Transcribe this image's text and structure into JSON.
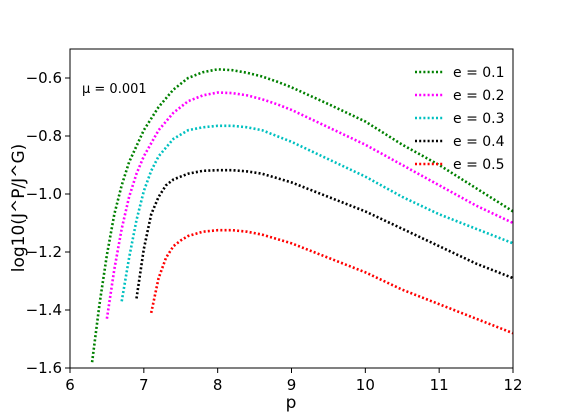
{
  "chart_data": {
    "type": "line",
    "xlabel": "p",
    "ylabel": "log10(J^P/J^G)",
    "xlim": [
      6,
      12
    ],
    "ylim": [
      -1.6,
      -0.5
    ],
    "xticks": [
      "6",
      "7",
      "8",
      "9",
      "10",
      "11",
      "12"
    ],
    "yticks": [
      "-0.6",
      "-0.8",
      "-1.0",
      "-1.2",
      "-1.4",
      "-1.6"
    ],
    "annotation": "μ = 0.001",
    "legend_position": "top-right",
    "grid": false,
    "series": [
      {
        "name": "e = 0.1",
        "color": "#008000",
        "x": [
          6.3,
          6.4,
          6.5,
          6.6,
          6.7,
          6.8,
          7.0,
          7.2,
          7.4,
          7.6,
          7.8,
          8.0,
          8.2,
          8.4,
          8.6,
          8.8,
          9.0,
          9.5,
          10.0,
          10.5,
          11.0,
          11.5,
          12.0
        ],
        "y": [
          -1.58,
          -1.38,
          -1.21,
          -1.07,
          -0.97,
          -0.89,
          -0.78,
          -0.7,
          -0.64,
          -0.6,
          -0.58,
          -0.57,
          -0.573,
          -0.582,
          -0.595,
          -0.612,
          -0.632,
          -0.69,
          -0.75,
          -0.83,
          -0.9,
          -0.98,
          -1.06
        ]
      },
      {
        "name": "e = 0.2",
        "color": "#ff00ff",
        "x": [
          6.5,
          6.6,
          6.7,
          6.8,
          6.9,
          7.0,
          7.2,
          7.4,
          7.6,
          7.8,
          8.0,
          8.2,
          8.4,
          8.6,
          8.8,
          9.0,
          9.5,
          10.0,
          10.5,
          11.0,
          11.5,
          12.0
        ],
        "y": [
          -1.43,
          -1.26,
          -1.12,
          -1.01,
          -0.93,
          -0.87,
          -0.78,
          -0.72,
          -0.68,
          -0.66,
          -0.65,
          -0.652,
          -0.66,
          -0.673,
          -0.69,
          -0.71,
          -0.77,
          -0.83,
          -0.9,
          -0.97,
          -1.04,
          -1.1
        ]
      },
      {
        "name": "e = 0.3",
        "color": "#00c0c0",
        "x": [
          6.7,
          6.8,
          6.9,
          7.0,
          7.1,
          7.2,
          7.4,
          7.6,
          7.8,
          8.0,
          8.2,
          8.4,
          8.6,
          8.8,
          9.0,
          9.5,
          10.0,
          10.5,
          11.0,
          11.5,
          12.0
        ],
        "y": [
          -1.37,
          -1.22,
          -1.09,
          -0.99,
          -0.92,
          -0.87,
          -0.81,
          -0.78,
          -0.77,
          -0.765,
          -0.765,
          -0.77,
          -0.78,
          -0.8,
          -0.82,
          -0.88,
          -0.94,
          -1.01,
          -1.07,
          -1.12,
          -1.17
        ]
      },
      {
        "name": "e = 0.4",
        "color": "#000000",
        "x": [
          6.9,
          7.0,
          7.1,
          7.2,
          7.3,
          7.4,
          7.6,
          7.8,
          8.0,
          8.2,
          8.4,
          8.6,
          8.8,
          9.0,
          9.5,
          10.0,
          10.5,
          11.0,
          11.5,
          12.0
        ],
        "y": [
          -1.36,
          -1.19,
          -1.07,
          -1.01,
          -0.97,
          -0.95,
          -0.93,
          -0.92,
          -0.918,
          -0.918,
          -0.922,
          -0.93,
          -0.945,
          -0.96,
          -1.01,
          -1.06,
          -1.12,
          -1.18,
          -1.24,
          -1.29
        ]
      },
      {
        "name": "e = 0.5",
        "color": "#ff0000",
        "x": [
          7.1,
          7.2,
          7.3,
          7.4,
          7.5,
          7.6,
          7.8,
          8.0,
          8.2,
          8.4,
          8.6,
          8.8,
          9.0,
          9.5,
          10.0,
          10.5,
          11.0,
          11.5,
          12.0
        ],
        "y": [
          -1.41,
          -1.29,
          -1.22,
          -1.18,
          -1.16,
          -1.145,
          -1.13,
          -1.125,
          -1.125,
          -1.13,
          -1.14,
          -1.155,
          -1.17,
          -1.22,
          -1.27,
          -1.33,
          -1.38,
          -1.43,
          -1.48
        ]
      }
    ]
  }
}
